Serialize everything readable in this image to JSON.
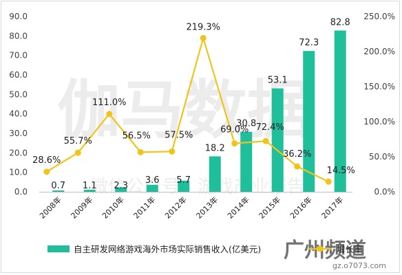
{
  "chart_data": {
    "type": "bar+line",
    "categories": [
      "2008年",
      "2009年",
      "2010年",
      "2011年",
      "2012年",
      "2013年",
      "2014年",
      "2015年",
      "2016年",
      "2017年"
    ],
    "series": [
      {
        "name": "自主研发网络游戏海外市场实际销售收入(亿美元)",
        "type": "bar",
        "axis": "left",
        "values": [
          0.7,
          1.1,
          2.3,
          3.6,
          5.7,
          18.2,
          30.8,
          53.1,
          72.3,
          82.8
        ],
        "value_labels": [
          "0.7",
          "1.1",
          "2.3",
          "3.6",
          "5.7",
          "18.2",
          "30.8",
          "53.1",
          "72.3",
          "82.8"
        ],
        "color": "#1fbf9c"
      },
      {
        "name": "增长率",
        "type": "line",
        "axis": "right",
        "values": [
          28.6,
          55.7,
          111.0,
          56.5,
          57.5,
          219.3,
          69.0,
          72.4,
          36.2,
          14.5
        ],
        "value_labels": [
          "28.6%",
          "55.7%",
          "111.0%",
          "56.5%",
          "57.5%",
          "219.3%",
          "69.0%",
          "72.4%",
          "36.2%",
          "14.5%"
        ],
        "color": "#f0c419"
      }
    ],
    "y_left": {
      "range": [
        0,
        90
      ],
      "ticks": [
        "0.0",
        "10.0",
        "20.0",
        "30.0",
        "40.0",
        "50.0",
        "60.0",
        "70.0",
        "80.0",
        "90.0"
      ]
    },
    "y_right": {
      "range": [
        0,
        250
      ],
      "ticks": [
        "0.0%",
        "50.0%",
        "100.0%",
        "150.0%",
        "200.0%",
        "250.0%"
      ]
    },
    "grid": false,
    "legend": "bottom",
    "watermarks": {
      "big": "伽马数据",
      "small": "微信公众号：游戏产业报告",
      "logo": "广州频道",
      "url": "gz.o7073.com"
    }
  }
}
